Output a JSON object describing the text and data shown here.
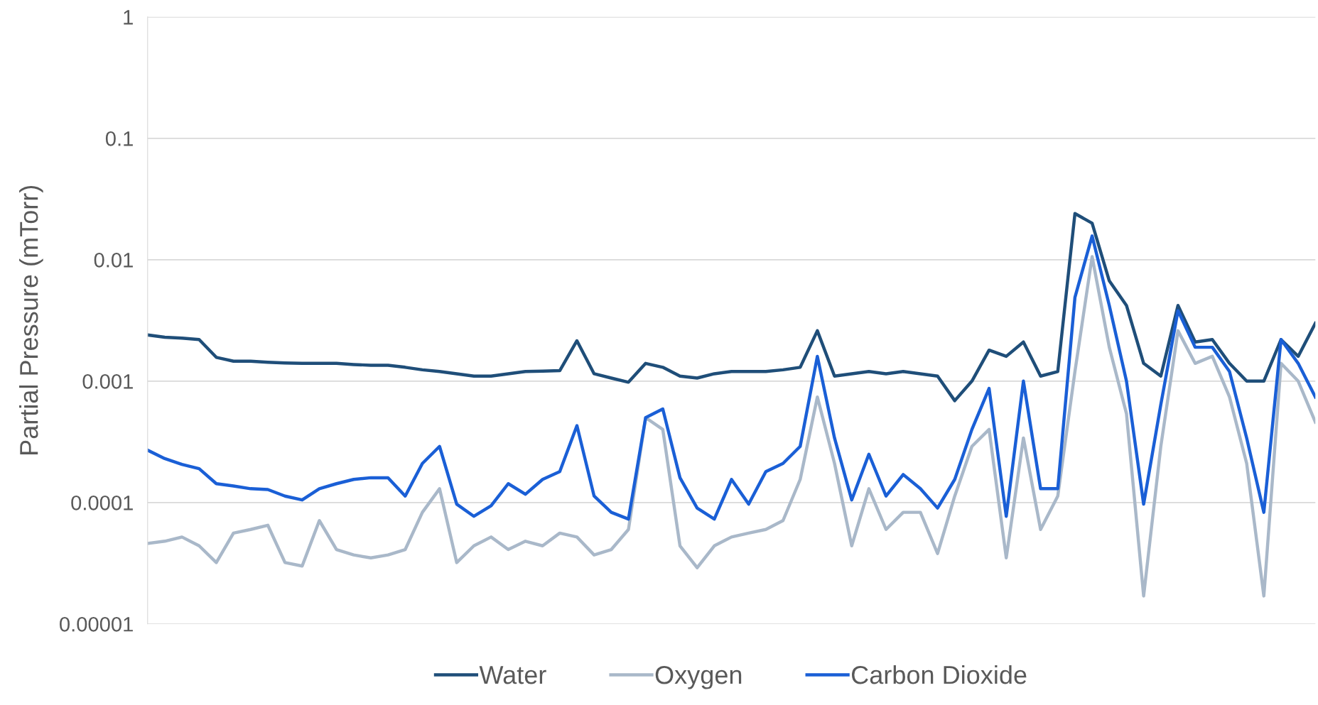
{
  "chart_data": {
    "type": "line",
    "ylabel": "Partial Pressure (mTorr)",
    "log": "y",
    "grid": "y",
    "legend": "bottom",
    "tick_labels": "y",
    "line_style": "solid",
    "marker": "none",
    "categories": [
      null,
      null,
      null,
      null,
      null,
      null,
      null,
      null,
      null,
      null,
      null,
      null,
      null,
      null,
      null,
      null,
      null,
      null,
      null,
      null,
      null,
      null,
      null,
      null,
      null,
      null,
      null,
      null,
      null,
      null,
      null,
      null,
      null,
      null,
      null,
      null,
      null,
      null,
      null,
      null,
      null,
      null,
      null,
      null,
      null,
      null,
      null,
      null,
      null,
      null,
      null,
      null,
      null,
      null,
      null,
      null,
      null,
      null,
      null,
      null,
      null,
      null,
      null,
      null,
      null,
      null,
      null,
      null,
      null
    ],
    "ylim": [
      1e-05,
      1
    ],
    "yticks": [
      {
        "value": 1e-05,
        "label": "0.00001"
      },
      {
        "value": 0.0001,
        "label": "0.0001"
      },
      {
        "value": 0.001,
        "label": "0.001"
      },
      {
        "value": 0.01,
        "label": "0.01"
      },
      {
        "value": 0.1,
        "label": "0.1"
      },
      {
        "value": 1,
        "label": "1"
      }
    ],
    "series": [
      {
        "name": "Water",
        "color": "#1f4e79",
        "values": [
          0.0024,
          0.0023,
          0.00226,
          0.0022,
          0.00157,
          0.00146,
          0.00146,
          0.00143,
          0.00141,
          0.0014,
          0.0014,
          0.0014,
          0.00137,
          0.00135,
          0.00135,
          0.0013,
          0.00124,
          0.0012,
          0.00115,
          0.0011,
          0.0011,
          0.00115,
          0.0012,
          0.00121,
          0.00122,
          0.00215,
          0.00115,
          0.00106,
          0.00098,
          0.0014,
          0.0013,
          0.0011,
          0.00106,
          0.00115,
          0.0012,
          0.0012,
          0.0012,
          0.00124,
          0.0013,
          0.0026,
          0.0011,
          0.00115,
          0.0012,
          0.00115,
          0.0012,
          0.00115,
          0.0011,
          0.00069,
          0.001,
          0.0018,
          0.0016,
          0.0021,
          0.0011,
          0.0012,
          0.024,
          0.02,
          0.0067,
          0.0042,
          0.0014,
          0.0011,
          0.0042,
          0.0021,
          0.0022,
          0.0014,
          0.001,
          0.001,
          0.0022,
          0.0016,
          0.003
        ]
      },
      {
        "name": "Oxygen",
        "color": "#a9b8c9",
        "values": [
          4.6e-05,
          4.8e-05,
          5.2e-05,
          4.4e-05,
          3.2e-05,
          5.6e-05,
          6e-05,
          6.5e-05,
          3.2e-05,
          3e-05,
          7.1e-05,
          4.1e-05,
          3.7e-05,
          3.5e-05,
          3.7e-05,
          4.1e-05,
          8.3e-05,
          0.00013,
          3.2e-05,
          4.4e-05,
          5.2e-05,
          4.1e-05,
          4.8e-05,
          4.4e-05,
          5.6e-05,
          5.2e-05,
          3.7e-05,
          4.1e-05,
          6e-05,
          0.0005,
          0.0004,
          4.4e-05,
          2.9e-05,
          4.4e-05,
          5.2e-05,
          5.6e-05,
          6e-05,
          7.1e-05,
          0.000155,
          0.00074,
          0.00021,
          4.4e-05,
          0.00013,
          6e-05,
          8.3e-05,
          8.3e-05,
          3.8e-05,
          0.000113,
          0.00029,
          0.0004,
          3.5e-05,
          0.00034,
          6e-05,
          0.000113,
          0.0012,
          0.0106,
          0.0019,
          0.00054,
          1.7e-05,
          0.00029,
          0.0026,
          0.0014,
          0.0016,
          0.00074,
          0.00021,
          1.7e-05,
          0.0014,
          0.001,
          0.00046
        ]
      },
      {
        "name": "Carbon Dioxide",
        "color": "#1a5fd6",
        "values": [
          0.00027,
          0.00023,
          0.000206,
          0.00019,
          0.000143,
          0.000137,
          0.00013,
          0.000128,
          0.000113,
          0.000105,
          0.00013,
          0.000143,
          0.000155,
          0.00016,
          0.00016,
          0.000113,
          0.00021,
          0.00029,
          9.7e-05,
          7.7e-05,
          9.4e-05,
          0.000143,
          0.000117,
          0.000155,
          0.00018,
          0.00043,
          0.000113,
          8.3e-05,
          7.3e-05,
          0.0005,
          0.00059,
          0.00016,
          9e-05,
          7.3e-05,
          0.000155,
          9.7e-05,
          0.00018,
          0.00021,
          0.00029,
          0.0016,
          0.00034,
          0.000105,
          0.00025,
          0.000113,
          0.00017,
          0.00013,
          9e-05,
          0.000155,
          0.0004,
          0.00087,
          7.7e-05,
          0.001,
          0.00013,
          0.00013,
          0.0049,
          0.0157,
          0.0042,
          0.001,
          9.7e-05,
          0.00064,
          0.0038,
          0.0019,
          0.0019,
          0.0012,
          0.00034,
          8.3e-05,
          0.0022,
          0.0014,
          0.00074
        ]
      }
    ]
  }
}
